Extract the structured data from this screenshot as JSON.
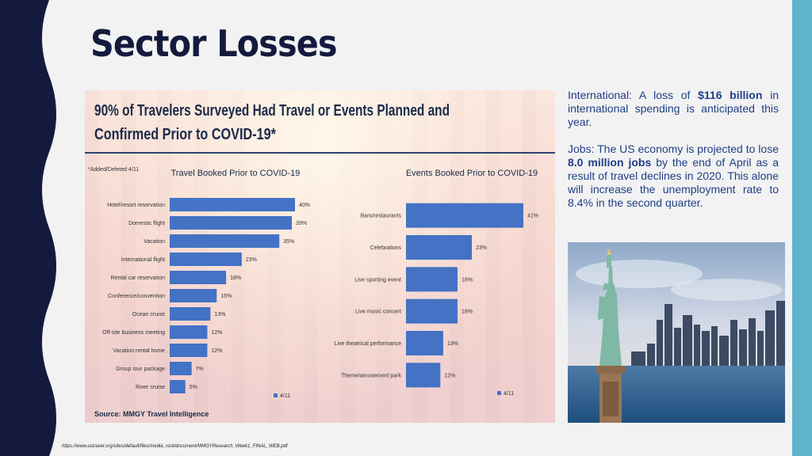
{
  "slide": {
    "title": "Sector Losses",
    "colors": {
      "navy": "#141a3e",
      "accent_blue": "#1f3f86",
      "right_band": "#5fb3cc",
      "bar": "#4472c4"
    }
  },
  "side_text": {
    "international_prefix": "International:  A loss of ",
    "international_bold": "$116 billion",
    "international_suffix": " in international spending is anticipated this year.",
    "jobs_prefix": "Jobs:  The US economy is projected to lose ",
    "jobs_bold": "8.0 million jobs",
    "jobs_suffix": " by the end of April as a result of travel declines in 2020. This alone will increase the unemployment  rate to 8.4% in the second quarter."
  },
  "photo": {
    "subject": "statue-of-liberty-skyline"
  },
  "source_url": "https://www.ustravel.org/sites/default/files/media_root/document/MMGYResearch_Week1_FINAL_WEB.pdf",
  "chart_panel": {
    "headline": [
      "90% of Travelers Surveyed Had Travel or Events Planned and",
      "Confirmed Prior to COVID-19*"
    ],
    "footnote": "*Added/Deleted 4/11",
    "source": "Source: MMGY Travel Intelligence"
  },
  "chart_data": [
    {
      "type": "bar",
      "orientation": "horizontal",
      "title": "Travel Booked Prior to COVID-19",
      "categories": [
        "Hotel/resort reservation",
        "Domestic flight",
        "Vacation",
        "International flight",
        "Rental car reservation",
        "Conference/convention",
        "Ocean cruise",
        "Off-site business meeting",
        "Vacation rental home",
        "Group tour package",
        "River cruise"
      ],
      "series": [
        {
          "name": "4/11",
          "values": [
            40,
            39,
            35,
            23,
            18,
            15,
            13,
            12,
            12,
            7,
            5
          ],
          "color": "#4472c4"
        }
      ],
      "value_labels": [
        "40%",
        "39%",
        "35%",
        "23%",
        "18%",
        "15%",
        "13%",
        "12%",
        "12%",
        "7%",
        "5%"
      ],
      "xlim": [
        0,
        40
      ],
      "legend": "bottom-right",
      "grid": false
    },
    {
      "type": "bar",
      "orientation": "horizontal",
      "title": "Events Booked Prior to COVID-19",
      "categories": [
        "Bars/restaurants",
        "Celebrations",
        "Live sporting event",
        "Live music concert",
        "Live theatrical performance",
        "Theme/amusement park"
      ],
      "series": [
        {
          "name": "4/11",
          "values": [
            41,
            23,
            18,
            18,
            13,
            12
          ],
          "color": "#4472c4"
        }
      ],
      "value_labels": [
        "41%",
        "23%",
        "18%",
        "18%",
        "13%",
        "12%"
      ],
      "xlim": [
        0,
        41
      ],
      "legend": "bottom-right",
      "grid": false
    }
  ]
}
